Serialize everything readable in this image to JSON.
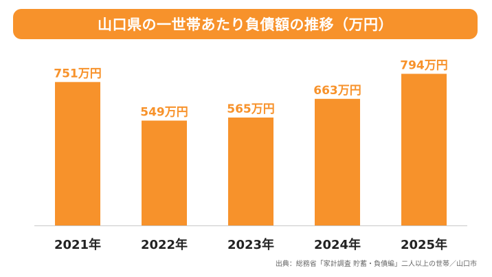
{
  "title": "山口県の一世帯あたり負債額の推移（万円）",
  "source": "出典：総務省「家計調査 貯蓄・負債編」二人以上の世帯／山口市",
  "colors": {
    "bar": "#f7922b",
    "banner": "#f7922b",
    "value_label": "#f7922b",
    "axis_label": "#222222",
    "baseline": "#c8c8c8"
  },
  "chart_data": {
    "type": "bar",
    "title": "山口県の一世帯あたり負債額の推移（万円）",
    "categories": [
      "2021年",
      "2022年",
      "2023年",
      "2024年",
      "2025年"
    ],
    "values": [
      751,
      549,
      565,
      663,
      794
    ],
    "data_labels": [
      "751万円",
      "549万円",
      "565万円",
      "663万円",
      "794万円"
    ],
    "unit": "万円",
    "ylim": [
      0,
      835
    ],
    "grid": false,
    "legend": "none"
  }
}
